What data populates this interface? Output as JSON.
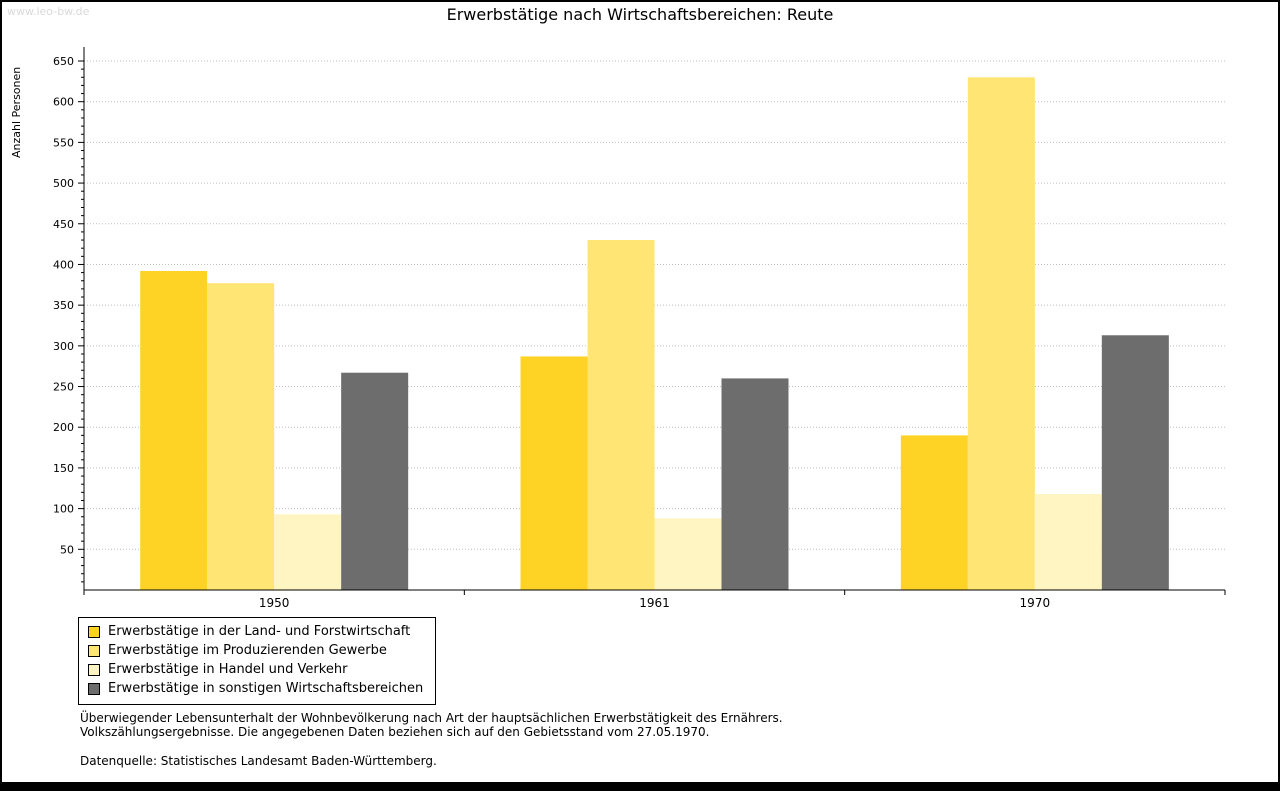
{
  "page": {
    "watermark": "www.leo-bw.de",
    "title": "Erwerbstätige nach Wirtschaftsbereichen: Reute"
  },
  "chart_data": {
    "type": "bar",
    "title": "Erwerbstätige nach Wirtschaftsbereichen: Reute",
    "xlabel": "",
    "ylabel": "Anzahl Personen",
    "ylim": [
      0,
      650
    ],
    "ytick_step": 50,
    "minor_tick_step": 10,
    "grid": true,
    "legend_position": "bottom-left",
    "categories": [
      "1950",
      "1961",
      "1970"
    ],
    "series": [
      {
        "name": "Erwerbstätige in der Land- und Forstwirtschaft",
        "color": "#FFD326",
        "values": [
          392,
          287,
          190
        ]
      },
      {
        "name": "Erwerbstätige im Produzierenden Gewerbe",
        "color": "#FFE573",
        "values": [
          377,
          430,
          630
        ]
      },
      {
        "name": "Erwerbstätige in Handel und Verkehr",
        "color": "#FFF5C2",
        "values": [
          93,
          88,
          118
        ]
      },
      {
        "name": "Erwerbstätige in sonstigen Wirtschaftsbereichen",
        "color": "#6D6D6D",
        "values": [
          267,
          260,
          313
        ]
      }
    ],
    "colors": {
      "grid": "#bfbfbf",
      "axis": "#000000"
    }
  },
  "footnotes": {
    "line1": "Überwiegender Lebensunterhalt der Wohnbevölkerung nach Art der hauptsächlichen Erwerbstätigkeit des Ernährers.",
    "line2": "Volkszählungsergebnisse. Die angegebenen Daten beziehen sich auf den Gebietsstand vom 27.05.1970.",
    "source": "Datenquelle: Statistisches Landesamt Baden-Württemberg."
  }
}
